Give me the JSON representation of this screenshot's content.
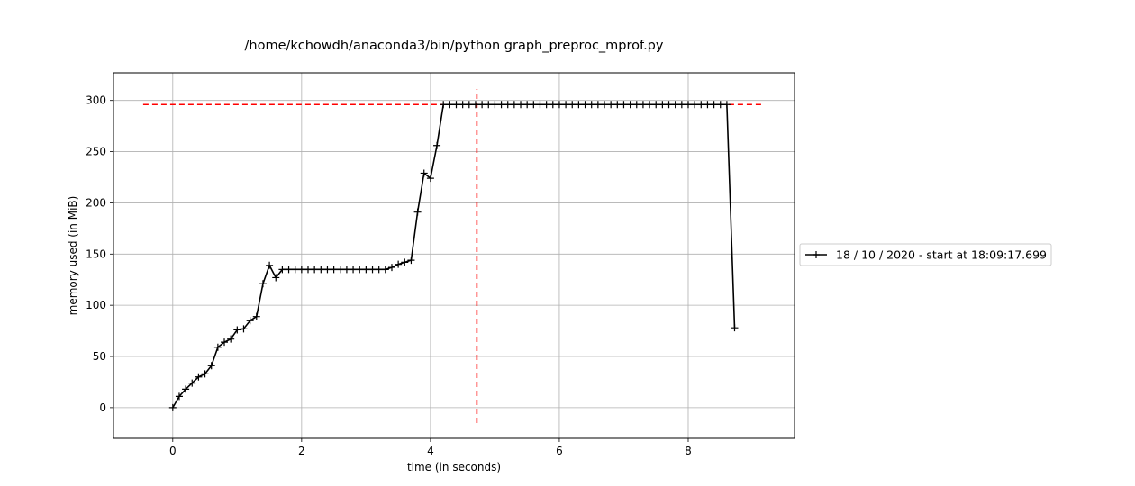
{
  "chart_data": {
    "type": "line",
    "title": "/home/kchowdh/anaconda3/bin/python graph_preproc_mprof.py",
    "xlabel": "time (in seconds)",
    "ylabel": "memory used (in MiB)",
    "xlim": [
      -0.92,
      9.65
    ],
    "ylim": [
      -30,
      327
    ],
    "xticks": [
      0,
      2,
      4,
      6,
      8
    ],
    "yticks": [
      0,
      50,
      100,
      150,
      200,
      250,
      300
    ],
    "grid": true,
    "legend_position": "right",
    "series": [
      {
        "name": "18 / 10 / 2020 - start at 18:09:17.699",
        "color": "#000000",
        "marker": "+",
        "x": [
          0.0,
          0.1,
          0.2,
          0.3,
          0.4,
          0.5,
          0.6,
          0.7,
          0.8,
          0.9,
          1.0,
          1.1,
          1.2,
          1.3,
          1.4,
          1.5,
          1.6,
          1.7,
          1.8,
          1.9,
          2.0,
          2.1,
          2.2,
          2.3,
          2.4,
          2.5,
          2.6,
          2.7,
          2.8,
          2.9,
          3.0,
          3.1,
          3.2,
          3.3,
          3.4,
          3.5,
          3.6,
          3.7,
          3.8,
          3.9,
          4.0,
          4.1,
          4.2,
          4.3,
          4.4,
          4.5,
          4.6,
          4.7,
          4.8,
          4.9,
          5.0,
          5.1,
          5.2,
          5.3,
          5.4,
          5.5,
          5.6,
          5.7,
          5.8,
          5.9,
          6.0,
          6.1,
          6.2,
          6.3,
          6.4,
          6.5,
          6.6,
          6.7,
          6.8,
          6.9,
          7.0,
          7.1,
          7.2,
          7.3,
          7.4,
          7.5,
          7.6,
          7.7,
          7.8,
          7.9,
          8.0,
          8.1,
          8.2,
          8.3,
          8.4,
          8.5,
          8.6,
          8.72
        ],
        "y": [
          0,
          11,
          18,
          24,
          30,
          33,
          41,
          59,
          64,
          67,
          76,
          77,
          85,
          89,
          121,
          139,
          127,
          135,
          135,
          135,
          135,
          135,
          135,
          135,
          135,
          135,
          135,
          135,
          135,
          135,
          135,
          135,
          135,
          135,
          137,
          140,
          142,
          144,
          191,
          229,
          224,
          256,
          296,
          296,
          296,
          296,
          296,
          296,
          296,
          296,
          296,
          296,
          296,
          296,
          296,
          296,
          296,
          296,
          296,
          296,
          296,
          296,
          296,
          296,
          296,
          296,
          296,
          296,
          296,
          296,
          296,
          296,
          296,
          296,
          296,
          296,
          296,
          296,
          296,
          296,
          296,
          296,
          296,
          296,
          296,
          296,
          296,
          78
        ]
      }
    ],
    "annotations": [
      {
        "type": "hline",
        "y": 296,
        "xmin": -0.46,
        "xmax": 9.18,
        "color": "#ff0000",
        "style": "dashed"
      },
      {
        "type": "vline",
        "x": 4.72,
        "ymin": -15,
        "ymax": 311,
        "color": "#ff0000",
        "style": "dashed"
      }
    ]
  }
}
